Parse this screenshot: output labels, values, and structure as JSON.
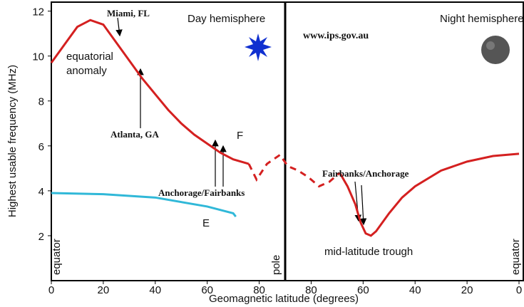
{
  "chart_data": {
    "type": "line",
    "ylabel": "Highest usable frequency (MHz)",
    "xlabel": "Geomagnetic latitude (degrees)",
    "xlim": [
      0,
      180
    ],
    "xticks": [
      0,
      20,
      40,
      60,
      80,
      {
        "value": 100,
        "label": "80"
      },
      {
        "value": 120,
        "label": "60"
      },
      {
        "value": 140,
        "label": "40"
      },
      {
        "value": 160,
        "label": "20"
      },
      {
        "value": 180,
        "label": "0"
      }
    ],
    "ylim": [
      0,
      12.4
    ],
    "yticks": [
      2,
      4,
      6,
      8,
      10,
      12
    ],
    "series": [
      {
        "name": "F",
        "color": "#d42020",
        "dashed": false,
        "x": [
          0,
          5,
          10,
          15,
          20,
          25,
          30,
          35,
          40,
          45,
          50,
          55,
          60,
          65,
          70,
          76
        ],
        "values": [
          9.7,
          10.5,
          11.3,
          11.6,
          11.4,
          10.6,
          9.8,
          9.0,
          8.3,
          7.6,
          7.0,
          6.5,
          6.1,
          5.7,
          5.4,
          5.2
        ]
      },
      {
        "color": "#d42020",
        "dashed": true,
        "x": [
          76,
          79,
          83,
          88,
          91,
          95,
          99,
          103,
          107,
          111
        ],
        "values": [
          5.2,
          4.5,
          5.2,
          5.6,
          5.1,
          4.9,
          4.6,
          4.2,
          4.4,
          4.8
        ]
      },
      {
        "color": "#d42020",
        "dashed": false,
        "x": [
          111,
          114,
          117,
          119,
          121,
          123,
          125,
          130,
          135,
          140,
          150,
          160,
          170,
          180
        ],
        "values": [
          4.8,
          4.2,
          3.4,
          2.6,
          2.1,
          2.0,
          2.2,
          3.0,
          3.7,
          4.2,
          4.9,
          5.3,
          5.55,
          5.65
        ]
      },
      {
        "name": "E",
        "color": "#30b8d8",
        "dashed": false,
        "x": [
          0,
          20,
          40,
          60,
          70,
          71
        ],
        "values": [
          3.9,
          3.85,
          3.7,
          3.3,
          3.0,
          2.85
        ]
      }
    ],
    "annotations": [
      "Miami, FL",
      "equatorial",
      "anomaly",
      "Atlanta, GA",
      "Anchorage/Fairbanks",
      "Day hemisphere",
      "Night hemisphere",
      "www.ips.gov.au",
      "Fairbanks/Anchorage",
      "mid-latitude trough",
      "equator",
      "pole",
      "equator"
    ]
  }
}
